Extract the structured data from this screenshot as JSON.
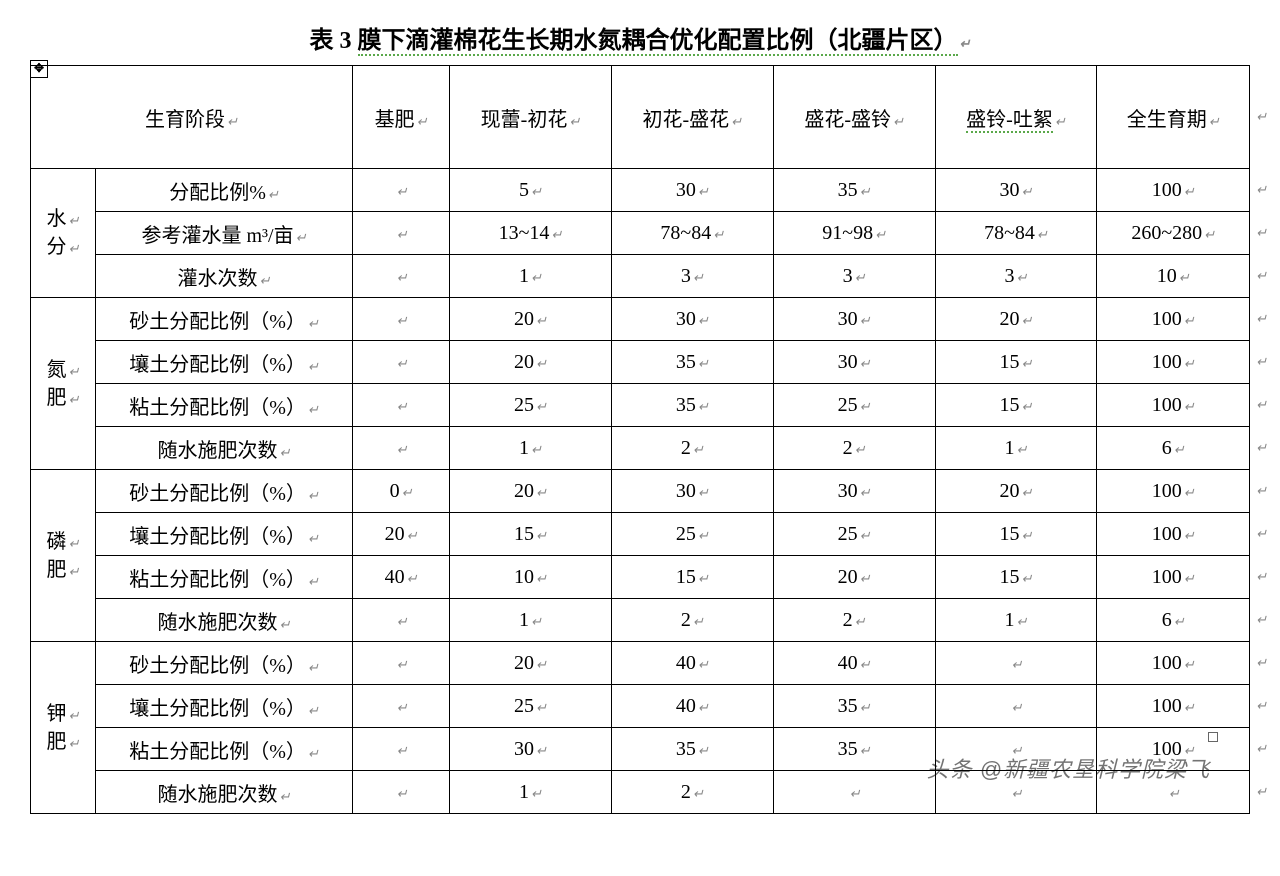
{
  "title_prefix": "表 3 ",
  "title_underlined": "膜下滴灌棉花生长期水氮耦合优化配置比例（北疆片区）",
  "paragraph_mark": "↵",
  "anchor_symbol": "✥",
  "watermark_text": "头条 @新疆农垦科学院梁飞",
  "columns": [
    "生育阶段",
    "基肥",
    "现蕾-初花",
    "初花-盛花",
    "盛花-盛铃",
    "盛铃-吐絮",
    "全生育期"
  ],
  "col_underline_idx": 5,
  "groups": [
    {
      "name": "水分",
      "rows": [
        {
          "label": "分配比例%",
          "cells": [
            "",
            "5",
            "30",
            "35",
            "30",
            "100"
          ]
        },
        {
          "label": "参考灌水量 m³/亩",
          "cells": [
            "",
            "13~14",
            "78~84",
            "91~98",
            "78~84",
            "260~280"
          ]
        },
        {
          "label": "灌水次数",
          "cells": [
            "",
            "1",
            "3",
            "3",
            "3",
            "10"
          ]
        }
      ]
    },
    {
      "name": "氮肥",
      "rows": [
        {
          "label": "砂土分配比例（%）",
          "cells": [
            "",
            "20",
            "30",
            "30",
            "20",
            "100"
          ]
        },
        {
          "label": "壤土分配比例（%）",
          "cells": [
            "",
            "20",
            "35",
            "30",
            "15",
            "100"
          ]
        },
        {
          "label": "粘土分配比例（%）",
          "cells": [
            "",
            "25",
            "35",
            "25",
            "15",
            "100"
          ]
        },
        {
          "label": "随水施肥次数",
          "cells": [
            "",
            "1",
            "2",
            "2",
            "1",
            "6"
          ]
        }
      ]
    },
    {
      "name": "磷肥",
      "rows": [
        {
          "label": "砂土分配比例（%）",
          "cells": [
            "0",
            "20",
            "30",
            "30",
            "20",
            "100"
          ]
        },
        {
          "label": "壤土分配比例（%）",
          "cells": [
            "20",
            "15",
            "25",
            "25",
            "15",
            "100"
          ]
        },
        {
          "label": "粘土分配比例（%）",
          "cells": [
            "40",
            "10",
            "15",
            "20",
            "15",
            "100"
          ]
        },
        {
          "label": "随水施肥次数",
          "cells": [
            "",
            "1",
            "2",
            "2",
            "1",
            "6"
          ]
        }
      ]
    },
    {
      "name": "钾肥",
      "rows": [
        {
          "label": "砂土分配比例（%）",
          "cells": [
            "",
            "20",
            "40",
            "40",
            "",
            "100"
          ]
        },
        {
          "label": "壤土分配比例（%）",
          "cells": [
            "",
            "25",
            "40",
            "35",
            "",
            "100"
          ]
        },
        {
          "label": "粘土分配比例（%）",
          "cells": [
            "",
            "30",
            "35",
            "35",
            "",
            "100"
          ]
        },
        {
          "label": "随水施肥次数",
          "cells": [
            "",
            "1",
            "2",
            "",
            "",
            ""
          ]
        }
      ]
    }
  ]
}
